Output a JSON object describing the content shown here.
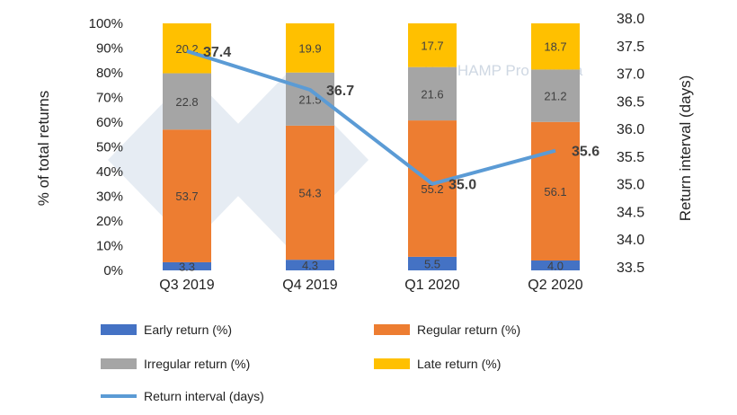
{
  "chart_data": {
    "type": "bar",
    "stacked": true,
    "categories": [
      "Q3 2019",
      "Q4 2019",
      "Q1 2020",
      "Q2 2020"
    ],
    "series": [
      {
        "name": "Early return (%)",
        "values": [
          3.3,
          4.3,
          5.5,
          4.0
        ],
        "color": "#4472c4"
      },
      {
        "name": "Regular return (%)",
        "values": [
          53.7,
          54.3,
          55.2,
          56.1
        ],
        "color": "#ed7d31"
      },
      {
        "name": "Irregular return (%)",
        "values": [
          22.8,
          21.5,
          21.6,
          21.2
        ],
        "color": "#a5a5a5"
      },
      {
        "name": "Late return (%)",
        "values": [
          20.2,
          19.9,
          17.7,
          18.7
        ],
        "color": "#ffc000"
      }
    ],
    "line_series": {
      "name": "Return interval (days)",
      "values": [
        37.4,
        36.7,
        35.0,
        35.6
      ],
      "color": "#5b9bd5",
      "axis": "right"
    },
    "ylabel": "% of total returns",
    "y2label": "Return interval (days)",
    "ylim": [
      0,
      100
    ],
    "y2lim": [
      33.5,
      38.0
    ],
    "yticks": [
      "0%",
      "10%",
      "20%",
      "30%",
      "40%",
      "50%",
      "60%",
      "70%",
      "80%",
      "90%",
      "100%"
    ],
    "y2ticks": [
      "33.5",
      "34.0",
      "34.5",
      "35.0",
      "35.5",
      "36.0",
      "36.5",
      "37.0",
      "37.5",
      "38.0"
    ],
    "grid": false,
    "legend_position": "bottom",
    "watermark": "PigCHAMP Pro Europa"
  }
}
